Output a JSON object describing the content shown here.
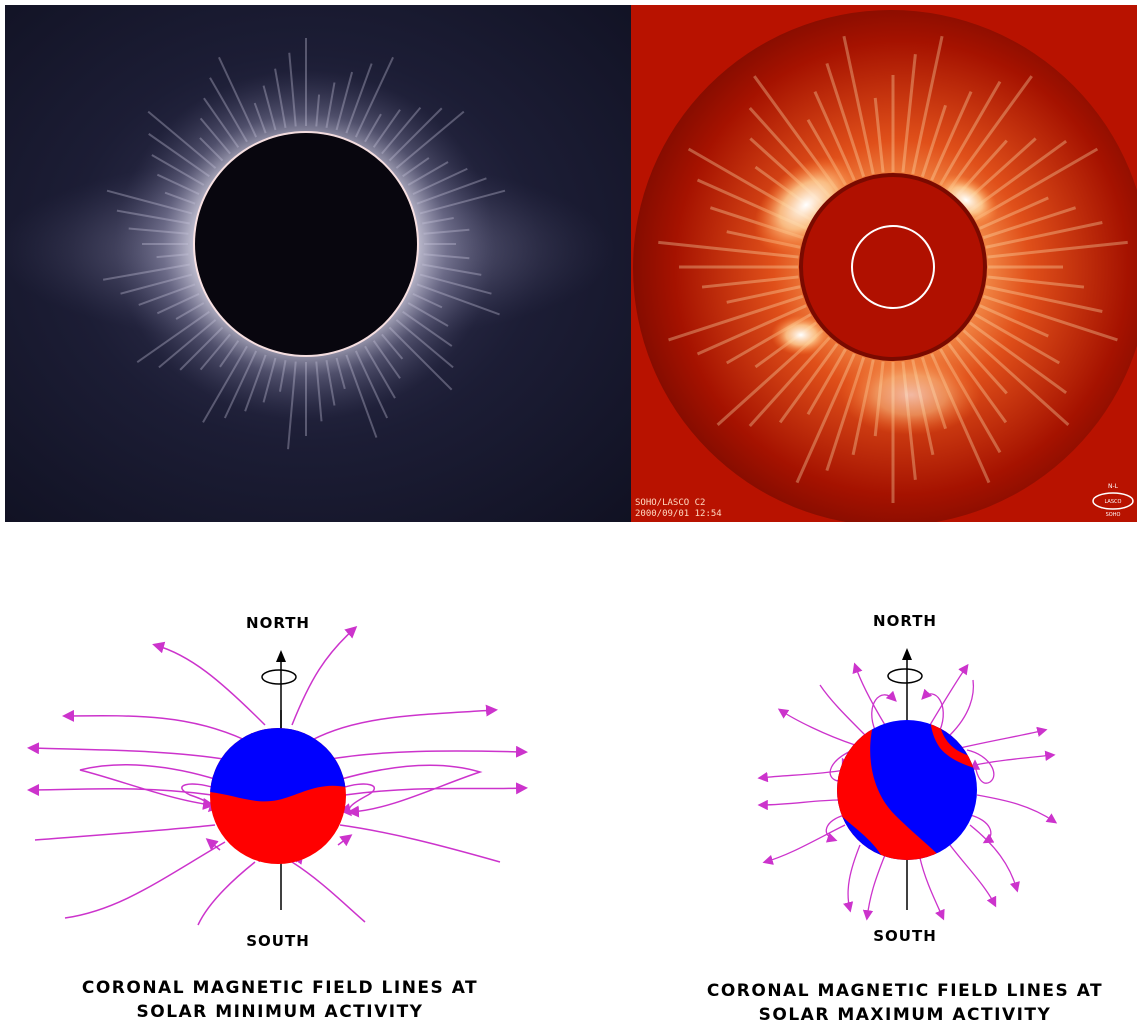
{
  "eclipse_panel": {},
  "lasco_panel": {
    "instrument_label": "SOHO/LASCO C2",
    "timestamp_label": "2000/09/01 12:54",
    "logo_north": "N-L",
    "logo_bottom": "LASCO",
    "logo_text_bottom2": "SOHO"
  },
  "diagram_min": {
    "north_label": "NORTH",
    "south_label": "SOUTH",
    "caption_line1": "CORONAL MAGNETIC FIELD LINES AT",
    "caption_line2": "SOLAR MINIMUM ACTIVITY"
  },
  "diagram_max": {
    "north_label": "NORTH",
    "south_label": "SOUTH",
    "caption_line1": "CORONAL MAGNETIC FIELD LINES AT",
    "caption_line2": "SOLAR MAXIMUM ACTIVITY"
  },
  "colors": {
    "field_line": "#cc33cc",
    "polarity_blue": "#0000ff",
    "polarity_red": "#ff0000",
    "eclipse_sky": "#15162b",
    "lasco_bg": "#b81200"
  }
}
